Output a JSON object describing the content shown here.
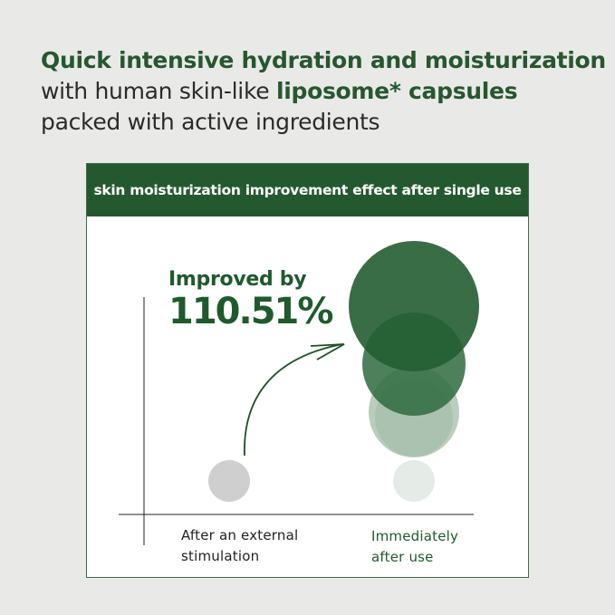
{
  "headline": {
    "line1_bold": "Quick intensive hydration and moisturization",
    "line2_prefix": "with human skin-like ",
    "line2_bold": "liposome* capsules",
    "line3": "packed with active ingredients"
  },
  "panel": {
    "title": "skin moisturization improvement effect after single use",
    "improved_label": "Improved by",
    "improved_value": "110.51%",
    "before_label_1": "After an external",
    "before_label_2": "stimulation",
    "after_label_1": "Immediately",
    "after_label_2": "after use"
  },
  "colors": {
    "brand_green": "#24592f",
    "background": "#e9e9e8",
    "before_circle": "#cfcfcf"
  }
}
